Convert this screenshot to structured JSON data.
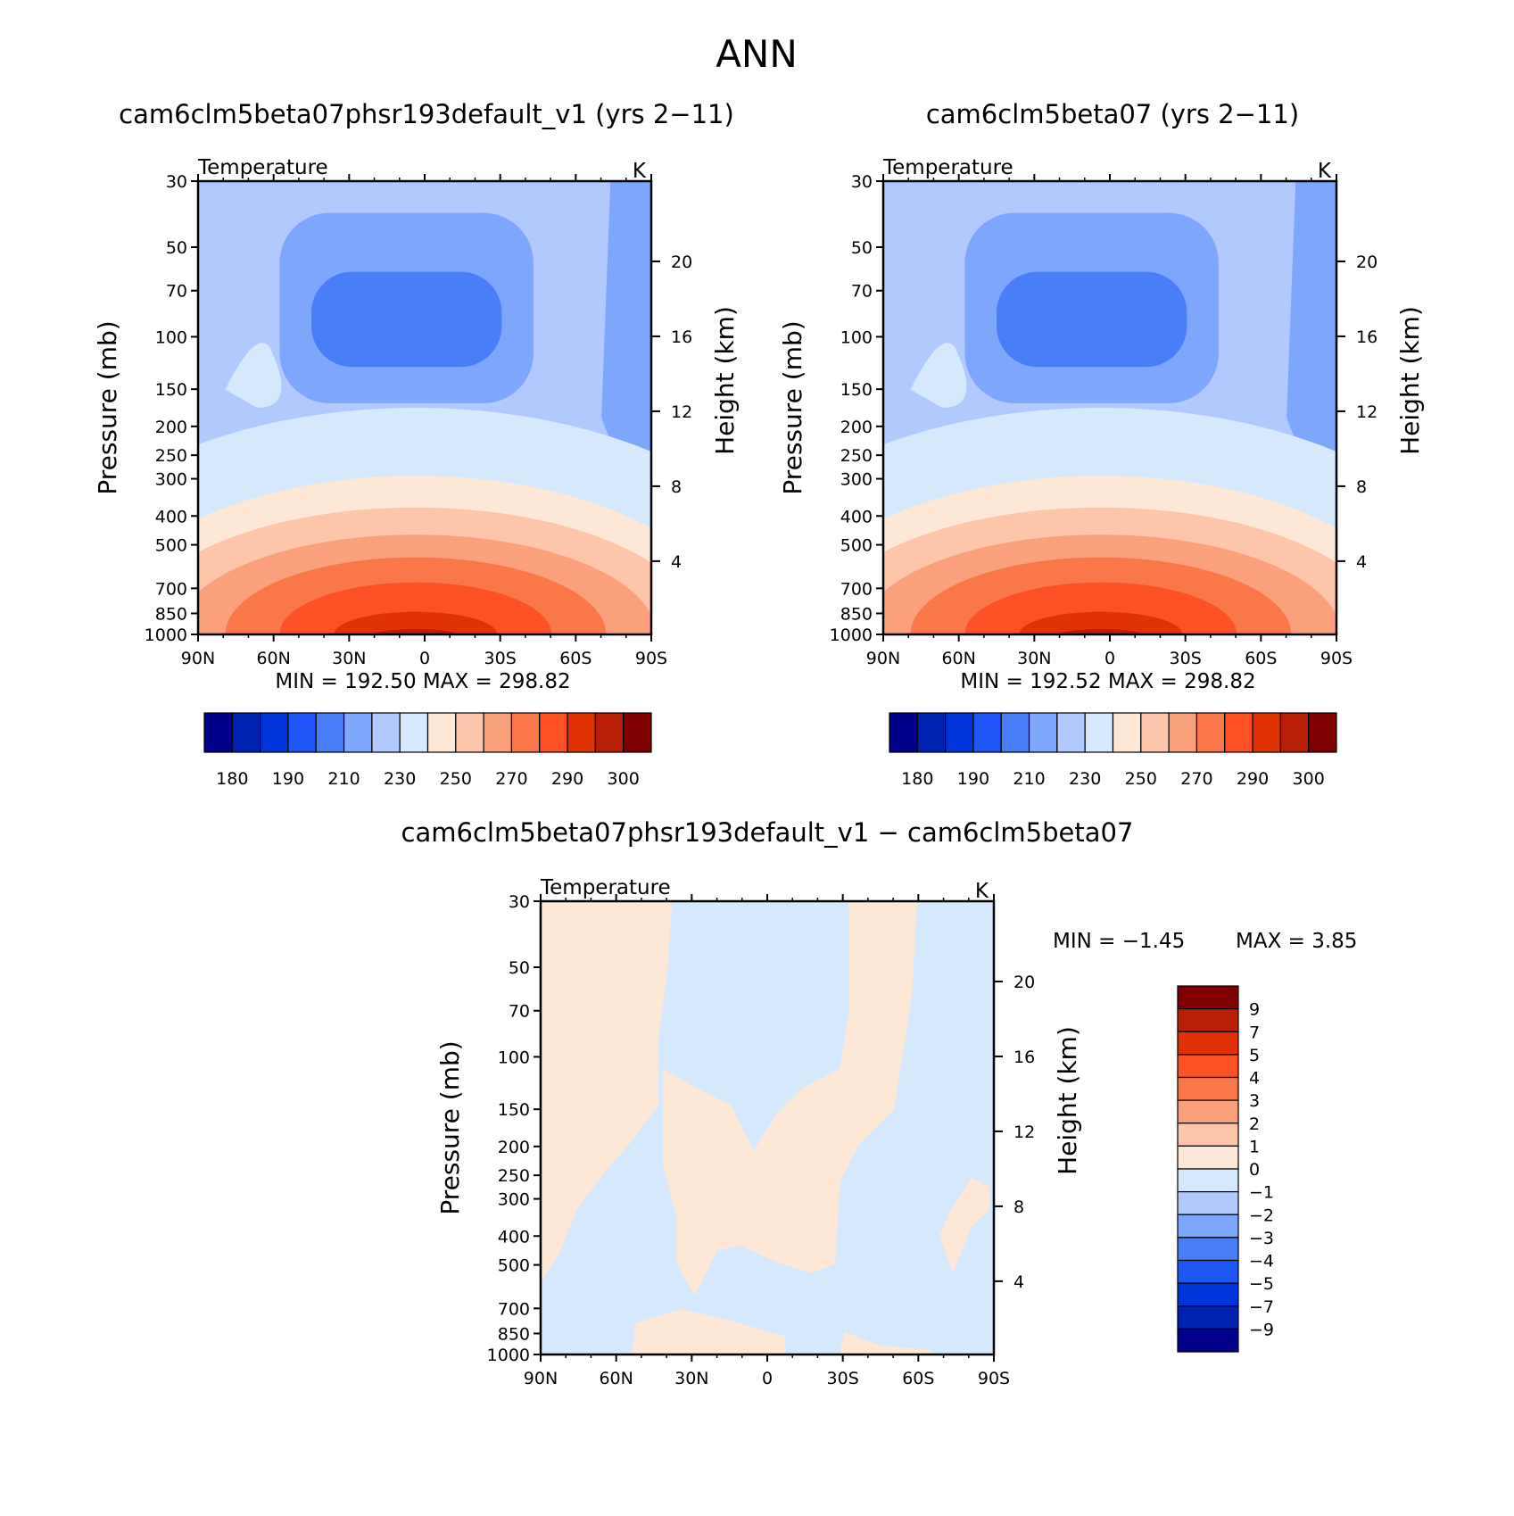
{
  "figure_title": "ANN",
  "colors": {
    "abs_levels": [
      "#00008a",
      "#0022b0",
      "#0035db",
      "#1e55f5",
      "#4a7ef7",
      "#7ea6fb",
      "#b2c9fd",
      "#d6e8fc",
      "#fde7d7",
      "#fdc6ab",
      "#fba07d",
      "#f97748",
      "#fb5124",
      "#e03205",
      "#b81f07",
      "#7f0000"
    ],
    "diff_levels": [
      "#00008a",
      "#0022b0",
      "#0035db",
      "#1e55f5",
      "#4a7ef7",
      "#7ea6fb",
      "#b2c9fd",
      "#d6e8fc",
      "#fde7d7",
      "#fdc6ab",
      "#fba07d",
      "#f97748",
      "#fb5124",
      "#e03205",
      "#b81f07",
      "#7f0000"
    ]
  },
  "chart_data": [
    {
      "id": "panel1",
      "type": "contour",
      "title": "cam6clm5beta07phsr193default_v1 (yrs 2−11)",
      "variable": "Temperature",
      "units": "K",
      "xlabel": "",
      "ylabel": "Pressure  (mb)",
      "ylabel_right": "Height  (km)",
      "x_ticks": [
        "90N",
        "60N",
        "30N",
        "0",
        "30S",
        "60S",
        "90S"
      ],
      "x_range": [
        90,
        -90
      ],
      "y_ticks": [
        30,
        50,
        70,
        100,
        150,
        200,
        250,
        300,
        400,
        500,
        700,
        850,
        1000
      ],
      "y_range": [
        30,
        1000
      ],
      "y_scale": "log",
      "right_ticks": [
        4,
        8,
        12,
        16,
        20
      ],
      "min_label": "MIN  =  192.50",
      "max_label": "MAX  =  298.82",
      "colorbar_ticks": [
        "180",
        "190",
        "210",
        "230",
        "250",
        "270",
        "290",
        "300"
      ],
      "levels": [
        180,
        185,
        190,
        200,
        210,
        220,
        230,
        240,
        250,
        260,
        270,
        280,
        290,
        295,
        300
      ]
    },
    {
      "id": "panel2",
      "type": "contour",
      "title": "cam6clm5beta07 (yrs 2−11)",
      "variable": "Temperature",
      "units": "K",
      "xlabel": "",
      "ylabel": "Pressure  (mb)",
      "ylabel_right": "Height  (km)",
      "x_ticks": [
        "90N",
        "60N",
        "30N",
        "0",
        "30S",
        "60S",
        "90S"
      ],
      "x_range": [
        90,
        -90
      ],
      "y_ticks": [
        30,
        50,
        70,
        100,
        150,
        200,
        250,
        300,
        400,
        500,
        700,
        850,
        1000
      ],
      "y_range": [
        30,
        1000
      ],
      "y_scale": "log",
      "right_ticks": [
        4,
        8,
        12,
        16,
        20
      ],
      "min_label": "MIN  =  192.52",
      "max_label": "MAX  =  298.82",
      "colorbar_ticks": [
        "180",
        "190",
        "210",
        "230",
        "250",
        "270",
        "290",
        "300"
      ],
      "levels": [
        180,
        185,
        190,
        200,
        210,
        220,
        230,
        240,
        250,
        260,
        270,
        280,
        290,
        295,
        300
      ]
    },
    {
      "id": "panel3",
      "type": "contour",
      "title": "cam6clm5beta07phsr193default_v1  −  cam6clm5beta07",
      "variable": "Temperature",
      "units": "K",
      "xlabel": "",
      "ylabel": "Pressure  (mb)",
      "ylabel_right": "Height  (km)",
      "x_ticks": [
        "90N",
        "60N",
        "30N",
        "0",
        "30S",
        "60S",
        "90S"
      ],
      "x_range": [
        90,
        -90
      ],
      "y_ticks": [
        30,
        50,
        70,
        100,
        150,
        200,
        250,
        300,
        400,
        500,
        700,
        850,
        1000
      ],
      "y_range": [
        30,
        1000
      ],
      "y_scale": "log",
      "right_ticks": [
        4,
        8,
        12,
        16,
        20
      ],
      "min_label": "MIN  =   −1.45",
      "max_label": "MAX  =     3.85",
      "colorbar_ticks": [
        "9",
        "7",
        "5",
        "4",
        "3",
        "2",
        "1",
        "0",
        "−1",
        "−2",
        "−3",
        "−4",
        "−5",
        "−7",
        "−9"
      ],
      "levels": [
        -9,
        -7,
        -5,
        -4,
        -3,
        -2,
        -1,
        0,
        1,
        2,
        3,
        4,
        5,
        7,
        9
      ]
    }
  ]
}
